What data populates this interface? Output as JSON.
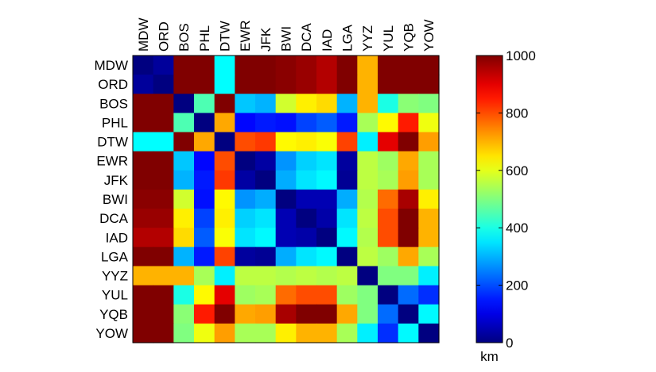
{
  "chart_data": {
    "type": "heatmap",
    "title": "",
    "airports": [
      "MDW",
      "ORD",
      "BOS",
      "PHL",
      "DTW",
      "EWR",
      "JFK",
      "BWI",
      "DCA",
      "IAD",
      "LGA",
      "YYZ",
      "YUL",
      "YQB",
      "YOW"
    ],
    "matrix": [
      [
        0,
        27,
        1000,
        1000,
        375,
        1000,
        1000,
        990,
        975,
        950,
        1000,
        700,
        1000,
        1000,
        1000
      ],
      [
        27,
        0,
        1000,
        1000,
        375,
        1000,
        1000,
        990,
        975,
        950,
        1000,
        700,
        1000,
        1000,
        1000
      ],
      [
        1000,
        1000,
        0,
        450,
        1000,
        320,
        300,
        580,
        640,
        660,
        300,
        700,
        400,
        510,
        500
      ],
      [
        1000,
        1000,
        450,
        0,
        710,
        130,
        150,
        140,
        190,
        215,
        150,
        540,
        630,
        850,
        610
      ],
      [
        375,
        375,
        1000,
        710,
        0,
        800,
        820,
        630,
        640,
        620,
        810,
        360,
        900,
        1000,
        720
      ],
      [
        1000,
        1000,
        320,
        130,
        800,
        0,
        35,
        270,
        330,
        350,
        30,
        560,
        530,
        710,
        540
      ],
      [
        1000,
        1000,
        300,
        150,
        820,
        35,
        0,
        295,
        350,
        370,
        20,
        560,
        540,
        720,
        540
      ],
      [
        990,
        990,
        580,
        140,
        630,
        270,
        295,
        0,
        50,
        50,
        295,
        550,
        770,
        960,
        640
      ],
      [
        975,
        975,
        640,
        190,
        640,
        330,
        350,
        50,
        0,
        40,
        350,
        560,
        800,
        1000,
        700
      ],
      [
        950,
        950,
        660,
        215,
        620,
        350,
        370,
        50,
        40,
        0,
        370,
        550,
        800,
        1000,
        700
      ],
      [
        1000,
        1000,
        300,
        150,
        810,
        30,
        20,
        295,
        350,
        370,
        0,
        560,
        530,
        710,
        540
      ],
      [
        700,
        700,
        700,
        540,
        360,
        560,
        560,
        550,
        560,
        550,
        560,
        0,
        500,
        500,
        360
      ],
      [
        1000,
        1000,
        400,
        630,
        900,
        530,
        540,
        770,
        800,
        800,
        530,
        500,
        0,
        230,
        170
      ],
      [
        1000,
        1000,
        510,
        850,
        1000,
        710,
        720,
        960,
        1000,
        1000,
        710,
        500,
        230,
        0,
        370
      ],
      [
        1000,
        1000,
        500,
        610,
        720,
        540,
        540,
        640,
        700,
        700,
        540,
        360,
        170,
        370,
        0
      ]
    ],
    "color_range": [
      0,
      1000
    ],
    "colormap": "jet",
    "colorbar": {
      "ticks": [
        "0",
        "200",
        "400",
        "600",
        "800",
        "1000"
      ],
      "tick_values": [
        0,
        200,
        400,
        600,
        800,
        1000
      ],
      "unit_label": "km",
      "placement": "right"
    },
    "grid": false
  }
}
